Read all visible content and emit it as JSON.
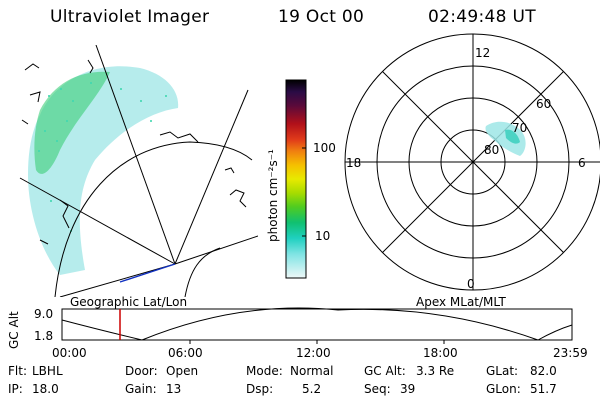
{
  "header": {
    "title": "Ultraviolet Imager",
    "date": "19 Oct 00",
    "time": "02:49:48 UT"
  },
  "left_panel_label": "Geographic Lat/Lon",
  "right_panel_label": "Apex MLat/MLT",
  "colorbar": {
    "unit_label": "photon cm⁻²s⁻¹",
    "ticks": [
      "100",
      "10"
    ],
    "colors": [
      "#000000",
      "#1a0d3a",
      "#3a0c4a",
      "#7a0a1a",
      "#c0101a",
      "#e8401a",
      "#f07a10",
      "#f5b800",
      "#f0e800",
      "#b8e000",
      "#70d000",
      "#20c030",
      "#00c878",
      "#00d8c0",
      "#60e0e0",
      "#a8ecec",
      "#e0f6f6"
    ]
  },
  "polar": {
    "lat_labels": [
      "80",
      "70",
      "60"
    ],
    "mlt_labels": {
      "top": "12",
      "left": "18",
      "right": "6",
      "bottom": "0"
    }
  },
  "altitude_plot": {
    "ylabel": "GC Alt",
    "yticks": [
      "9.0",
      "1.8"
    ],
    "xticks": [
      "00:00",
      "06:00",
      "12:00",
      "18:00",
      "23:59"
    ],
    "marker_color": "#cc0000"
  },
  "status": {
    "flt_label": "Flt:",
    "flt_value": "LBHL",
    "ip_label": "IP:",
    "ip_value": "18.0",
    "door_label": "Door:",
    "door_value": "Open",
    "gain_label": "Gain:",
    "gain_value": "13",
    "mode_label": "Mode:",
    "mode_value": "Normal",
    "dsp_label": "Dsp:",
    "dsp_value": "5.2",
    "gcalt_label": "GC Alt:",
    "gcalt_value": "3.3 Re",
    "seq_label": "Seq:",
    "seq_value": "39",
    "glat_label": "GLat:",
    "glat_value": "82.0",
    "glon_label": "GLon:",
    "glon_value": "51.7"
  }
}
